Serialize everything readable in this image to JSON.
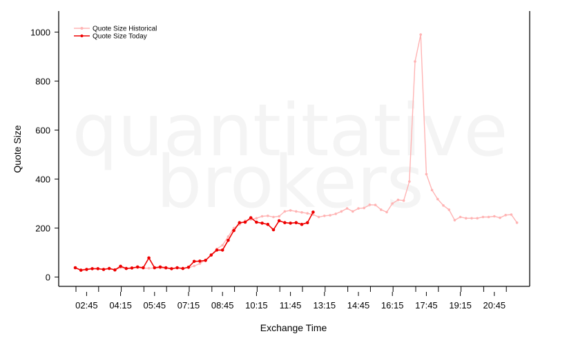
{
  "chart_data": {
    "type": "line",
    "xlabel": "Exchange Time",
    "ylabel": "Quote Size",
    "ylim": [
      -40,
      1080
    ],
    "yticks": [
      0,
      200,
      400,
      600,
      800,
      1000
    ],
    "x_tick_labels": [
      "02:45",
      "04:15",
      "05:45",
      "07:15",
      "08:45",
      "10:15",
      "11:45",
      "13:15",
      "14:45",
      "16:15",
      "17:45",
      "19:15",
      "20:45"
    ],
    "x_start": "02:15",
    "x_interval_minutes": 15,
    "watermark": [
      "quantitative",
      "brokers"
    ],
    "legend_position": "top-left",
    "series": [
      {
        "name": "Quote Size Historical",
        "color": "#ffb3b3",
        "values": [
          37,
          30,
          33,
          35,
          34,
          33,
          35,
          30,
          38,
          35,
          37,
          38,
          36,
          36,
          37,
          37,
          35,
          35,
          37,
          35,
          38,
          45,
          55,
          70,
          90,
          115,
          130,
          165,
          200,
          215,
          230,
          235,
          240,
          248,
          250,
          245,
          248,
          268,
          272,
          268,
          264,
          260,
          255,
          245,
          250,
          252,
          258,
          268,
          280,
          268,
          280,
          282,
          295,
          294,
          275,
          265,
          300,
          315,
          312,
          390,
          880,
          990,
          420,
          355,
          318,
          292,
          275,
          232,
          245,
          240,
          240,
          240,
          245,
          245,
          248,
          242,
          253,
          255,
          222
        ]
      },
      {
        "name": "Quote Size Today",
        "color": "#ee0000",
        "values": [
          38,
          28,
          31,
          34,
          34,
          31,
          35,
          29,
          44,
          35,
          37,
          41,
          38,
          78,
          38,
          41,
          38,
          34,
          38,
          35,
          40,
          64,
          65,
          68,
          90,
          110,
          110,
          150,
          190,
          222,
          224,
          242,
          224,
          220,
          215,
          193,
          230,
          222,
          220,
          222,
          215,
          222,
          265
        ]
      }
    ]
  }
}
